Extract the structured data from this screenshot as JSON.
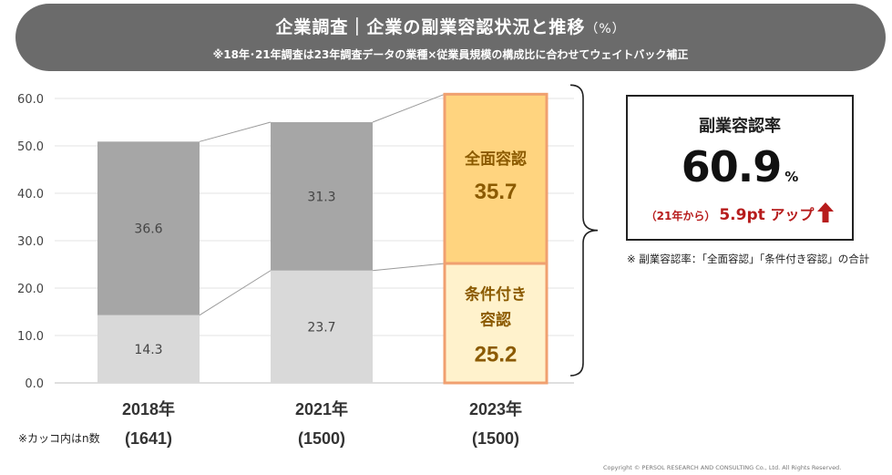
{
  "header": {
    "title": "企業調査｜企業の副業容認状況と推移",
    "title_unit": "（%）",
    "subtitle": "※18年･21年調査は23年調査データの業種×従業員規模の構成比に合わせてウェイトバック補正"
  },
  "chart_data": {
    "type": "bar",
    "stacked": true,
    "categories": [
      "2018年",
      "2021年",
      "2023年"
    ],
    "sample_sizes": [
      "(1641)",
      "(1500)",
      "(1500)"
    ],
    "series": [
      {
        "values": [
          14.3,
          23.7,
          25.2
        ],
        "label_2023": [
          "条件付き",
          "容認"
        ]
      },
      {
        "values": [
          36.6,
          31.3,
          35.7
        ],
        "label_2023": [
          "全面容認"
        ]
      }
    ],
    "y_ticks": [
      "0.0",
      "10.0",
      "20.0",
      "30.0",
      "40.0",
      "50.0",
      "60.0"
    ],
    "ylim": [
      0,
      60
    ],
    "grid": true,
    "colors": {
      "lower_prev": "#d9d9d9",
      "upper_prev": "#a6a6a6",
      "lower_2023": "#fff2cc",
      "upper_2023": "#ffd47f",
      "border_2023": "#f0a070",
      "value_2023": "#8b5a00"
    }
  },
  "summary": {
    "title": "副業容認率",
    "value": "60.9",
    "unit": "%",
    "from": "（21年から）",
    "delta": "5.9pt",
    "up": "アップ"
  },
  "note": "※ 副業容認率：「全面容認」「条件付き容認」の合計",
  "paren_note": "※カッコ内はn数",
  "copyright": "Copyright ©  PERSOL  RESEARCH AND CONSULTING Co., Ltd. All Rights Reserved."
}
